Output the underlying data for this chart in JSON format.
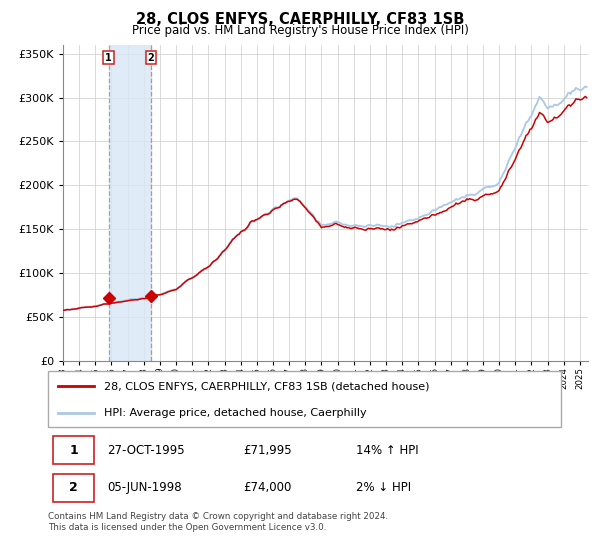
{
  "title": "28, CLOS ENFYS, CAERPHILLY, CF83 1SB",
  "subtitle": "Price paid vs. HM Land Registry's House Price Index (HPI)",
  "legend_line1": "28, CLOS ENFYS, CAERPHILLY, CF83 1SB (detached house)",
  "legend_line2": "HPI: Average price, detached house, Caerphilly",
  "sale1_date": "27-OCT-1995",
  "sale1_price": 71995,
  "sale1_pct": "14% ↑ HPI",
  "sale2_date": "05-JUN-1998",
  "sale2_price": 74000,
  "sale2_pct": "2% ↓ HPI",
  "footer": "Contains HM Land Registry data © Crown copyright and database right 2024.\nThis data is licensed under the Open Government Licence v3.0.",
  "hpi_color": "#aac8e8",
  "price_color": "#cc0000",
  "marker_color": "#cc0000",
  "sale1_x_year": 1995.82,
  "sale2_x_year": 1998.43,
  "ylim_min": 0,
  "ylim_max": 360000,
  "xlim_min": 1993.0,
  "xlim_max": 2025.5,
  "bg_color": "#ffffff",
  "grid_color": "#cccccc"
}
